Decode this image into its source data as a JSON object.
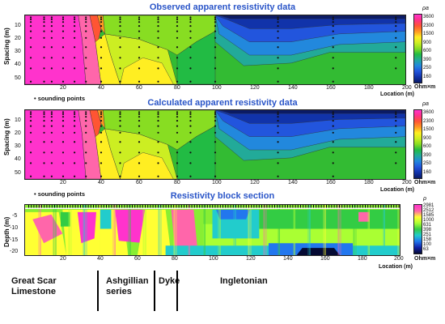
{
  "chart_data": [
    {
      "type": "heatmap",
      "title": "Observed apparent resistivity data",
      "ylabel": "Spacing (m)",
      "xlabel": "Location (m)",
      "xlim": [
        0,
        200
      ],
      "ylim": [
        52,
        0
      ],
      "xticks": [
        "20",
        "40",
        "60",
        "80",
        "100",
        "120",
        "140",
        "160",
        "180",
        "200"
      ],
      "yticks": [
        "10",
        "20",
        "30",
        "40",
        "50"
      ],
      "legend": "sounding points",
      "colorbar": {
        "label": "ρa",
        "unit": "Ohm×m",
        "ticks": [
          "3600",
          "2300",
          "1500",
          "900",
          "600",
          "390",
          "250",
          "160"
        ]
      }
    },
    {
      "type": "heatmap",
      "title": "Calculated apparent resistivity data",
      "ylabel": "Spacing (m)",
      "xlabel": "Location (m)",
      "xlim": [
        0,
        200
      ],
      "ylim": [
        52,
        0
      ],
      "xticks": [
        "20",
        "40",
        "60",
        "80",
        "100",
        "120",
        "140",
        "160",
        "180",
        "200"
      ],
      "yticks": [
        "10",
        "20",
        "30",
        "40",
        "50"
      ],
      "legend": "sounding points",
      "colorbar": {
        "label": "ρa",
        "unit": "Ohm×m",
        "ticks": [
          "3600",
          "2300",
          "1500",
          "900",
          "600",
          "390",
          "250",
          "160"
        ]
      }
    },
    {
      "type": "heatmap",
      "title": "Resistivity block section",
      "ylabel": "Depth (m)",
      "xlabel": "Location (m)",
      "xlim": [
        0,
        200
      ],
      "ylim": [
        0,
        -21
      ],
      "xticks": [
        "20",
        "40",
        "60",
        "80",
        "100",
        "120",
        "140",
        "160",
        "180",
        "200"
      ],
      "yticks": [
        "-5",
        "-10",
        "-15",
        "-20"
      ],
      "colorbar": {
        "label": "ρ",
        "unit": "Ohm×m",
        "ticks": [
          "2981",
          "2512",
          "1585",
          "1000",
          "631",
          "398",
          "251",
          "158",
          "100",
          "63"
        ]
      }
    }
  ],
  "units": [
    {
      "lines": [
        "Great Scar",
        "Limestone"
      ]
    },
    {
      "lines": [
        "Ashgillian",
        "series"
      ]
    },
    {
      "lines": [
        "Dyke"
      ]
    },
    {
      "lines": [
        "Ingletonian"
      ]
    }
  ],
  "sounding_x": [
    3,
    10,
    14,
    20,
    26,
    32,
    40,
    50,
    60,
    70,
    80,
    87,
    100,
    133,
    162,
    195
  ],
  "colors": {
    "title": "#2a55c8"
  }
}
